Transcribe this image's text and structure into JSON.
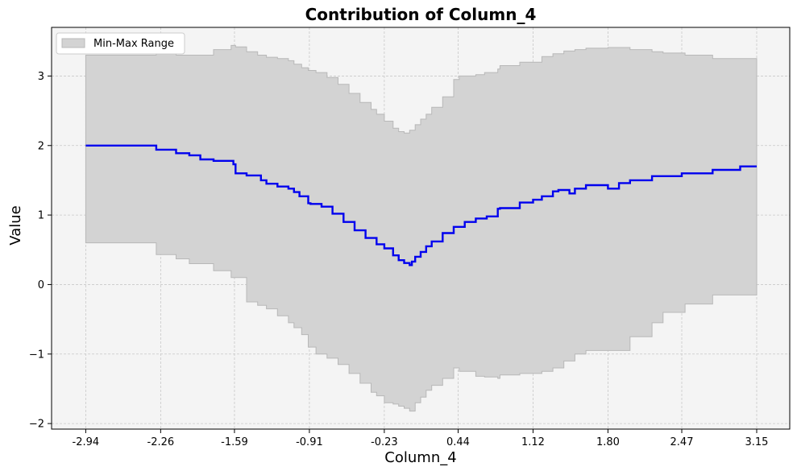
{
  "chart_data": {
    "type": "line",
    "title": "Contribution of Column_4",
    "xlabel": "Column_4",
    "ylabel": "Value",
    "xlim": [
      -3.25,
      3.45
    ],
    "ylim": [
      -2.08,
      3.7
    ],
    "x_ticks": [
      -2.94,
      -2.26,
      -1.59,
      -0.91,
      -0.23,
      0.44,
      1.12,
      1.8,
      2.47,
      3.15
    ],
    "x_tick_labels": [
      "-2.94",
      "-2.26",
      "-1.59",
      "-0.91",
      "-0.23",
      "0.44",
      "1.12",
      "1.80",
      "2.47",
      "3.15"
    ],
    "y_ticks": [
      -2,
      -1,
      0,
      1,
      2,
      3
    ],
    "y_tick_labels": [
      "−2",
      "−1",
      "0",
      "1",
      "2",
      "3"
    ],
    "grid": true,
    "legend": {
      "position": "top-left",
      "entries": [
        "Min-Max Range"
      ]
    },
    "colors": {
      "line": "#0000ee",
      "fill": "#d3d3d3",
      "fill_edge": "#b8b8b8",
      "plot_bg": "#f4f4f4",
      "grid": "#c8c8c8"
    },
    "series": [
      {
        "type": "line",
        "step": true,
        "x": [
          -2.94,
          -2.4,
          -2.3,
          -2.12,
          -2.0,
          -1.9,
          -1.78,
          -1.6,
          -1.58,
          -1.48,
          -1.35,
          -1.3,
          -1.2,
          -1.1,
          -1.05,
          -1.0,
          -0.92,
          -0.9,
          -0.8,
          -0.7,
          -0.6,
          -0.5,
          -0.4,
          -0.3,
          -0.23,
          -0.15,
          -0.1,
          -0.05,
          0.0,
          0.02,
          0.05,
          0.1,
          0.15,
          0.2,
          0.3,
          0.4,
          0.5,
          0.6,
          0.7,
          0.8,
          0.82,
          1.0,
          1.12,
          1.2,
          1.3,
          1.35,
          1.45,
          1.5,
          1.6,
          1.8,
          1.9,
          2.0,
          2.2,
          2.47,
          2.75,
          3.0,
          3.15
        ],
        "y": [
          2.0,
          2.0,
          1.94,
          1.89,
          1.86,
          1.8,
          1.78,
          1.73,
          1.6,
          1.57,
          1.5,
          1.45,
          1.41,
          1.38,
          1.33,
          1.27,
          1.17,
          1.16,
          1.12,
          1.02,
          0.9,
          0.78,
          0.67,
          0.58,
          0.52,
          0.42,
          0.35,
          0.31,
          0.28,
          0.33,
          0.4,
          0.47,
          0.55,
          0.62,
          0.74,
          0.83,
          0.9,
          0.95,
          0.98,
          1.09,
          1.1,
          1.18,
          1.22,
          1.27,
          1.34,
          1.36,
          1.31,
          1.38,
          1.43,
          1.38,
          1.46,
          1.5,
          1.56,
          1.6,
          1.65,
          1.7,
          1.7
        ]
      },
      {
        "name": "Min-Max Range",
        "type": "area",
        "step": true,
        "x": [
          -2.94,
          -2.56,
          -2.4,
          -2.3,
          -2.12,
          -2.0,
          -1.78,
          -1.62,
          -1.58,
          -1.48,
          -1.38,
          -1.3,
          -1.2,
          -1.1,
          -1.05,
          -0.98,
          -0.92,
          -0.85,
          -0.75,
          -0.65,
          -0.55,
          -0.45,
          -0.35,
          -0.3,
          -0.23,
          -0.15,
          -0.1,
          -0.05,
          0.0,
          0.05,
          0.1,
          0.15,
          0.2,
          0.3,
          0.4,
          0.45,
          0.6,
          0.68,
          0.8,
          0.82,
          1.0,
          1.2,
          1.3,
          1.4,
          1.5,
          1.6,
          1.8,
          2.0,
          2.2,
          2.3,
          2.5,
          2.75,
          3.15
        ],
        "y_min": [
          0.6,
          0.6,
          0.6,
          0.43,
          0.37,
          0.3,
          0.2,
          0.1,
          0.1,
          -0.25,
          -0.3,
          -0.35,
          -0.45,
          -0.55,
          -0.62,
          -0.72,
          -0.9,
          -1.0,
          -1.06,
          -1.15,
          -1.28,
          -1.42,
          -1.55,
          -1.6,
          -1.7,
          -1.72,
          -1.75,
          -1.78,
          -1.82,
          -1.7,
          -1.62,
          -1.52,
          -1.45,
          -1.35,
          -1.2,
          -1.25,
          -1.32,
          -1.33,
          -1.35,
          -1.3,
          -1.28,
          -1.25,
          -1.2,
          -1.1,
          -1.0,
          -0.95,
          -0.95,
          -0.75,
          -0.55,
          -0.4,
          -0.28,
          -0.15,
          -0.03
        ],
        "y_max": [
          3.3,
          3.3,
          3.3,
          3.32,
          3.3,
          3.3,
          3.38,
          3.44,
          3.42,
          3.35,
          3.3,
          3.27,
          3.25,
          3.22,
          3.17,
          3.12,
          3.08,
          3.05,
          2.98,
          2.88,
          2.75,
          2.62,
          2.52,
          2.45,
          2.35,
          2.25,
          2.2,
          2.18,
          2.22,
          2.3,
          2.38,
          2.45,
          2.55,
          2.7,
          2.95,
          3.0,
          3.02,
          3.05,
          3.1,
          3.15,
          3.2,
          3.28,
          3.32,
          3.36,
          3.38,
          3.4,
          3.41,
          3.38,
          3.35,
          3.33,
          3.3,
          3.25,
          3.22
        ]
      }
    ]
  }
}
